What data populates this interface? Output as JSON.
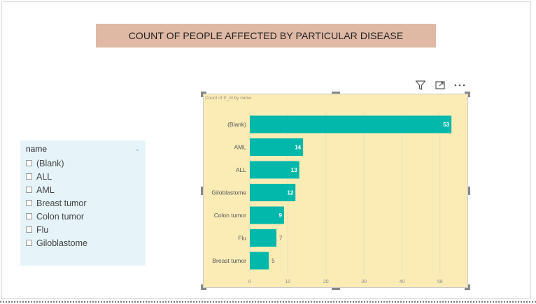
{
  "report": {
    "title": "COUNT OF PEOPLE AFFECTED BY PARTICULAR DISEASE"
  },
  "slicer": {
    "title": "name",
    "items": [
      "(Blank)",
      "ALL",
      "AML",
      "Breast tumor",
      "Colon tumor",
      "Flu",
      "Giloblastome"
    ]
  },
  "toolbar": {
    "icons": [
      "filter-icon",
      "focus-mode-icon",
      "more-options-icon"
    ]
  },
  "chart_data": {
    "type": "bar",
    "orientation": "horizontal",
    "title": "Count of P_Id by name",
    "categories": [
      "(Blank)",
      "AML",
      "ALL",
      "Giloblastome",
      "Colon tumor",
      "Flu",
      "Breast tumor"
    ],
    "values": [
      53,
      14,
      13,
      12,
      9,
      7,
      5
    ],
    "xticks": [
      0,
      10,
      20,
      30,
      40,
      50
    ],
    "xlim": [
      0,
      55
    ],
    "grid": true,
    "bar_color": "#01b8aa"
  }
}
